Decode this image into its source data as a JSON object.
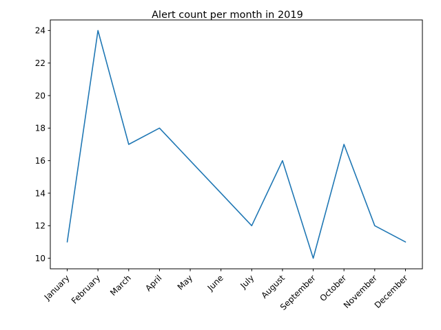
{
  "chart_data": {
    "type": "line",
    "title": "Alert count per month in 2019",
    "xlabel": "",
    "ylabel": "",
    "categories": [
      "January",
      "February",
      "March",
      "April",
      "May",
      "June",
      "July",
      "August",
      "September",
      "October",
      "November",
      "December"
    ],
    "values": [
      11,
      24,
      17,
      18,
      16,
      14,
      12,
      16,
      10,
      17,
      12,
      11
    ],
    "ylim": [
      9.35,
      24.65
    ],
    "yticks": [
      10,
      12,
      14,
      16,
      18,
      20,
      22,
      24
    ],
    "grid": false,
    "line_color": "#1f77b4"
  }
}
